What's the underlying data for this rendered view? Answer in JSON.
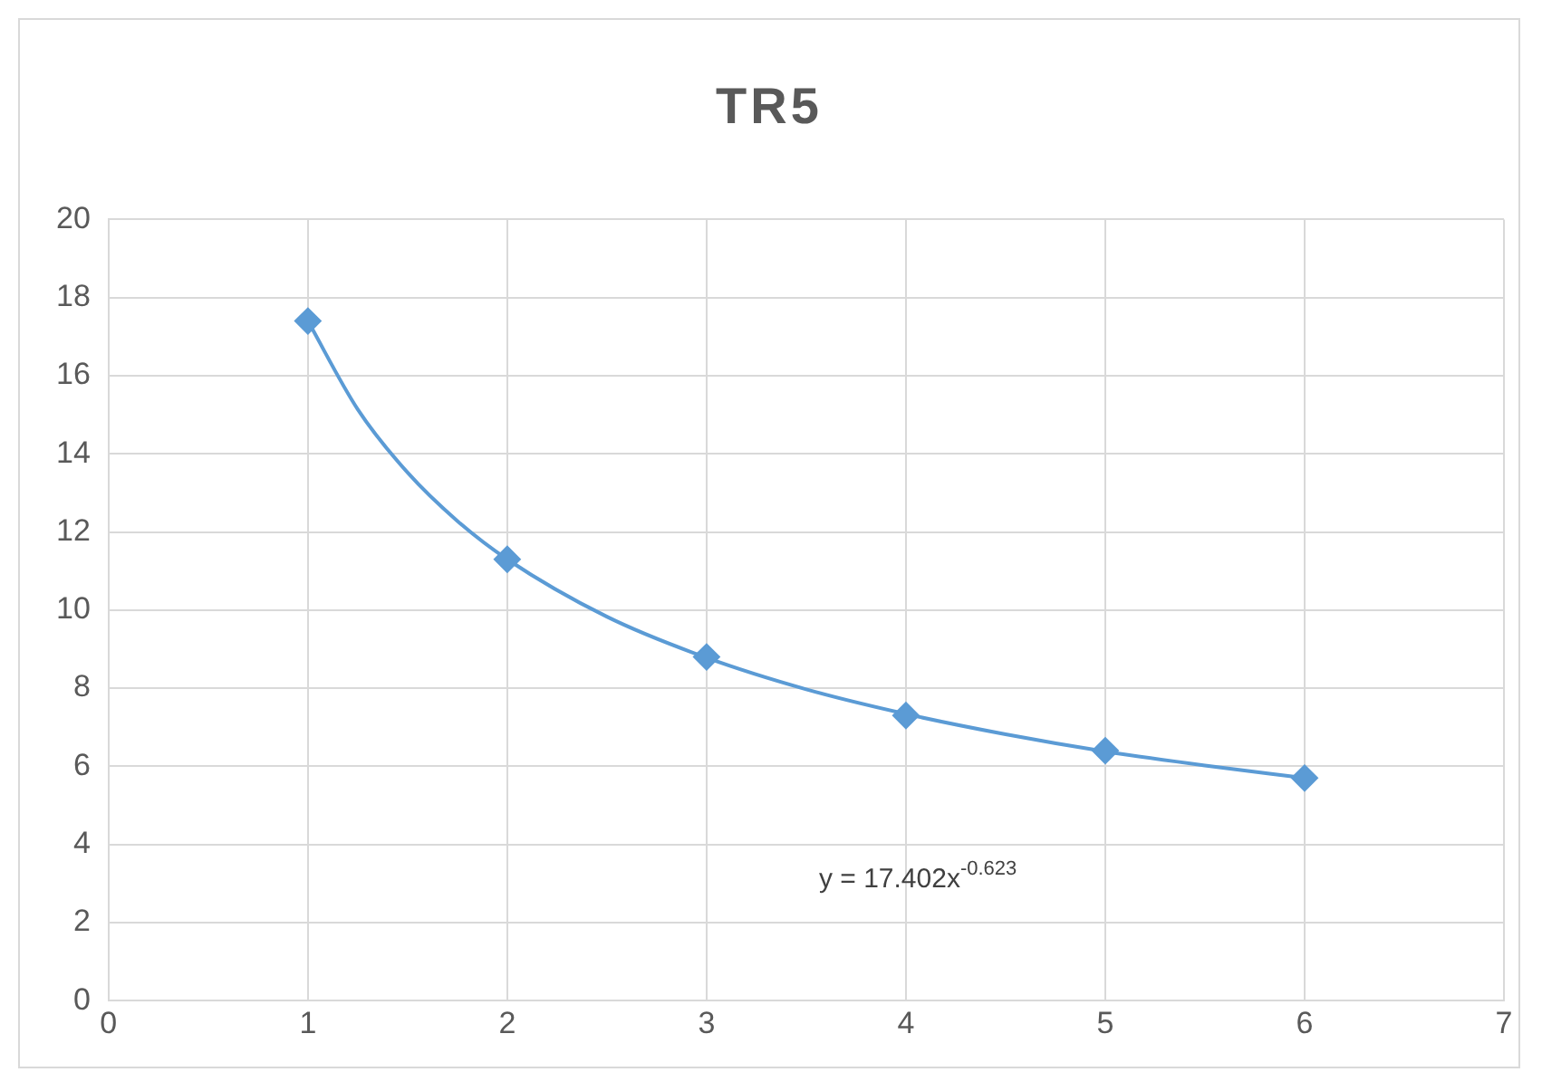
{
  "chart_data": {
    "type": "scatter",
    "title": "TR5",
    "x": [
      1,
      2,
      3,
      4,
      5,
      6
    ],
    "series": [
      {
        "type": "scatter",
        "color": "#5b9bd5",
        "marker": "diamond",
        "values": [
          17.4,
          11.3,
          8.8,
          7.3,
          6.4,
          5.7
        ]
      },
      {
        "type": "line",
        "color": "#5b9bd5",
        "marker": "none",
        "x": [
          1,
          1.25,
          1.5,
          1.75,
          2,
          2.5,
          3,
          3.5,
          4,
          4.5,
          5,
          5.5,
          6
        ],
        "values": [
          17.4,
          15.14,
          13.52,
          12.28,
          11.3,
          9.83,
          8.78,
          7.97,
          7.34,
          6.82,
          6.38,
          6.02,
          5.7
        ]
      }
    ],
    "xlim": [
      0,
      7
    ],
    "xticks": [
      0,
      1,
      2,
      3,
      4,
      5,
      6,
      7
    ],
    "ylim": [
      0,
      20
    ],
    "yticks": [
      0,
      2,
      4,
      6,
      8,
      10,
      12,
      14,
      16,
      18,
      20
    ],
    "grid": true,
    "legend": false,
    "annotations": [
      "y = 17.402x$^{-0.623}$"
    ]
  }
}
